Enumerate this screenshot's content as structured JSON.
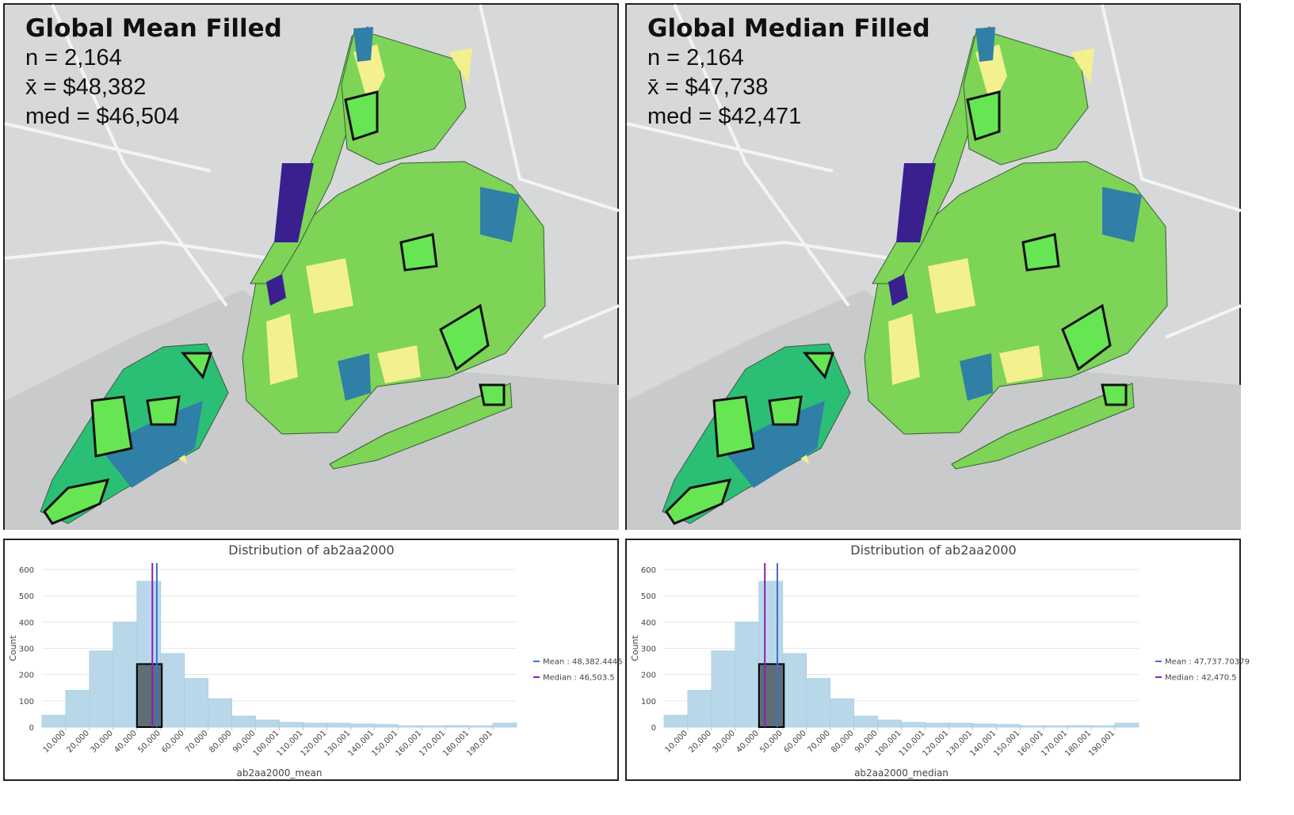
{
  "maps": [
    {
      "title": "Global Mean Filled",
      "lines": [
        "n = 2,164",
        "x̄ = $48,382",
        "med = $46,504"
      ]
    },
    {
      "title": "Global Median Filled",
      "lines": [
        "n = 2,164",
        "x̄ = $47,738",
        "med = $42,471"
      ]
    }
  ],
  "chart_data": [
    {
      "type": "histogram",
      "title": "Distribution of ab2aa2000",
      "x_label": "ab2aa2000_mean",
      "y_label": "Count",
      "bins": [
        0,
        10000,
        20000,
        30000,
        40000,
        50000,
        60000,
        70000,
        80000,
        90000,
        100000,
        110000,
        120000,
        130000,
        140000,
        150000,
        160000,
        170000,
        180000,
        190000,
        200000
      ],
      "counts": [
        45,
        140,
        290,
        400,
        555,
        280,
        185,
        108,
        42,
        27,
        18,
        15,
        15,
        12,
        10,
        5,
        5,
        6,
        5,
        15
      ],
      "color": "#b8d8ea",
      "ylim": [
        0,
        600
      ],
      "yticks": [
        0,
        100,
        200,
        300,
        400,
        500,
        600
      ],
      "xlim": [
        0,
        200000
      ],
      "xticks": [
        {
          "value": 10000,
          "label": "10,000"
        },
        {
          "value": 20000,
          "label": "20,000"
        },
        {
          "value": 30000,
          "label": "30,000"
        },
        {
          "value": 40000,
          "label": "40,000"
        },
        {
          "value": 50000,
          "label": "50,000"
        },
        {
          "value": 60000,
          "label": "60,000"
        },
        {
          "value": 70000,
          "label": "70,000"
        },
        {
          "value": 80000,
          "label": "80,000"
        },
        {
          "value": 90000,
          "label": "90,000"
        },
        {
          "value": 100001,
          "label": "100,001"
        },
        {
          "value": 110001,
          "label": "110,001"
        },
        {
          "value": 120001,
          "label": "120,001"
        },
        {
          "value": 130001,
          "label": "130,001"
        },
        {
          "value": 140001,
          "label": "140,001"
        },
        {
          "value": 150001,
          "label": "150,001"
        },
        {
          "value": 160001,
          "label": "160,001"
        },
        {
          "value": 170001,
          "label": "170,001"
        },
        {
          "value": 180001,
          "label": "180,001"
        },
        {
          "value": 190001,
          "label": "190,001"
        }
      ],
      "box": [
        40000,
        50500,
        240
      ],
      "series": [
        {
          "name": "Mean : 48,382.4445",
          "color": "#3a73c9",
          "value": 48382.4445
        },
        {
          "name": "Median : 46,503.5",
          "color": "#8a1fb5",
          "value": 46503.5
        }
      ]
    },
    {
      "type": "histogram",
      "title": "Distribution of ab2aa2000",
      "x_label": "ab2aa2000_median",
      "y_label": "Count",
      "bins": [
        0,
        10000,
        20000,
        30000,
        40000,
        50000,
        60000,
        70000,
        80000,
        90000,
        100000,
        110000,
        120000,
        130000,
        140000,
        150000,
        160000,
        170000,
        180000,
        190000,
        200000
      ],
      "counts": [
        45,
        140,
        290,
        400,
        555,
        280,
        185,
        108,
        42,
        27,
        18,
        15,
        15,
        12,
        10,
        5,
        5,
        6,
        5,
        15
      ],
      "color": "#b8d8ea",
      "ylim": [
        0,
        600
      ],
      "yticks": [
        0,
        100,
        200,
        300,
        400,
        500,
        600
      ],
      "xlim": [
        0,
        200000
      ],
      "xticks": [
        {
          "value": 10000,
          "label": "10,000"
        },
        {
          "value": 20000,
          "label": "20,000"
        },
        {
          "value": 30000,
          "label": "30,000"
        },
        {
          "value": 40000,
          "label": "40,000"
        },
        {
          "value": 50000,
          "label": "50,000"
        },
        {
          "value": 60000,
          "label": "60,000"
        },
        {
          "value": 70000,
          "label": "70,000"
        },
        {
          "value": 80000,
          "label": "80,000"
        },
        {
          "value": 90000,
          "label": "90,000"
        },
        {
          "value": 100001,
          "label": "100,001"
        },
        {
          "value": 110001,
          "label": "110,001"
        },
        {
          "value": 120001,
          "label": "120,001"
        },
        {
          "value": 130001,
          "label": "130,001"
        },
        {
          "value": 140001,
          "label": "140,001"
        },
        {
          "value": 150001,
          "label": "150,001"
        },
        {
          "value": 160001,
          "label": "160,001"
        },
        {
          "value": 170001,
          "label": "170,001"
        },
        {
          "value": 180001,
          "label": "180,001"
        },
        {
          "value": 190001,
          "label": "190,001"
        }
      ],
      "box": [
        40000,
        50500,
        240
      ],
      "series": [
        {
          "name": "Mean : 47,737.70379",
          "color": "#3a73c9",
          "value": 47737.70379
        },
        {
          "name": "Median : 42,470.5",
          "color": "#8a1fb5",
          "value": 42470.5
        }
      ]
    }
  ]
}
